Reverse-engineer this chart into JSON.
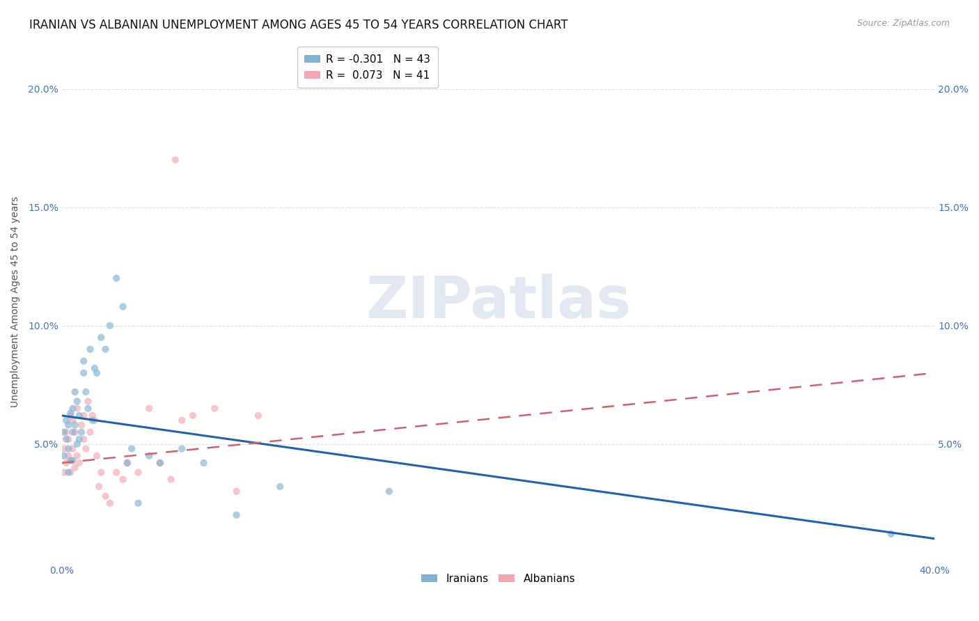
{
  "title": "IRANIAN VS ALBANIAN UNEMPLOYMENT AMONG AGES 45 TO 54 YEARS CORRELATION CHART",
  "source": "Source: ZipAtlas.com",
  "ylabel": "Unemployment Among Ages 45 to 54 years",
  "xlim": [
    0.0,
    0.4
  ],
  "ylim": [
    0.0,
    0.22
  ],
  "xticks": [
    0.0,
    0.05,
    0.1,
    0.15,
    0.2,
    0.25,
    0.3,
    0.35,
    0.4
  ],
  "yticks": [
    0.0,
    0.05,
    0.1,
    0.15,
    0.2
  ],
  "ytick_labels": [
    "",
    "5.0%",
    "10.0%",
    "15.0%",
    "20.0%"
  ],
  "xtick_labels": [
    "0.0%",
    "",
    "",
    "",
    "",
    "",
    "",
    "",
    "40.0%"
  ],
  "iranian_color": "#7fb3d3",
  "albanian_color": "#f4a7b0",
  "trend_iranian_color": "#2060b0",
  "trend_albanian_color": "#d06070",
  "r_iranian": -0.301,
  "n_iranian": 43,
  "r_albanian": 0.073,
  "n_albanian": 41,
  "scatter_size": 55,
  "scatter_alpha": 0.65,
  "background_color": "#ffffff",
  "grid_color": "#e0e0e0",
  "axis_color": "#4472C4",
  "title_fontsize": 12,
  "label_fontsize": 10,
  "tick_fontsize": 10,
  "legend_fontsize": 11,
  "iran_trend_x0": 0.0,
  "iran_trend_y0": 0.062,
  "iran_trend_x1": 0.4,
  "iran_trend_y1": 0.01,
  "alb_trend_x0": 0.0,
  "alb_trend_y0": 0.042,
  "alb_trend_x1": 0.4,
  "alb_trend_y1": 0.08,
  "iran_x": [
    0.001,
    0.001,
    0.002,
    0.002,
    0.003,
    0.003,
    0.003,
    0.004,
    0.004,
    0.005,
    0.005,
    0.005,
    0.006,
    0.006,
    0.007,
    0.007,
    0.008,
    0.008,
    0.009,
    0.01,
    0.01,
    0.011,
    0.012,
    0.013,
    0.014,
    0.015,
    0.016,
    0.018,
    0.02,
    0.022,
    0.025,
    0.028,
    0.03,
    0.032,
    0.035,
    0.04,
    0.045,
    0.055,
    0.065,
    0.08,
    0.1,
    0.15,
    0.38
  ],
  "iran_y": [
    0.055,
    0.045,
    0.052,
    0.06,
    0.048,
    0.058,
    0.038,
    0.063,
    0.043,
    0.065,
    0.055,
    0.043,
    0.058,
    0.072,
    0.05,
    0.068,
    0.062,
    0.052,
    0.055,
    0.08,
    0.085,
    0.072,
    0.065,
    0.09,
    0.06,
    0.082,
    0.08,
    0.095,
    0.09,
    0.1,
    0.12,
    0.108,
    0.042,
    0.048,
    0.025,
    0.045,
    0.042,
    0.048,
    0.042,
    0.02,
    0.032,
    0.03,
    0.012
  ],
  "alb_x": [
    0.001,
    0.001,
    0.002,
    0.002,
    0.003,
    0.003,
    0.004,
    0.004,
    0.005,
    0.005,
    0.006,
    0.006,
    0.007,
    0.007,
    0.008,
    0.009,
    0.01,
    0.01,
    0.011,
    0.012,
    0.013,
    0.014,
    0.015,
    0.016,
    0.017,
    0.018,
    0.02,
    0.022,
    0.025,
    0.028,
    0.03,
    0.035,
    0.04,
    0.045,
    0.05,
    0.055,
    0.06,
    0.07,
    0.08,
    0.09,
    0.052
  ],
  "alb_y": [
    0.048,
    0.038,
    0.055,
    0.042,
    0.052,
    0.045,
    0.062,
    0.038,
    0.06,
    0.048,
    0.04,
    0.055,
    0.065,
    0.045,
    0.042,
    0.058,
    0.062,
    0.052,
    0.048,
    0.068,
    0.055,
    0.062,
    0.06,
    0.045,
    0.032,
    0.038,
    0.028,
    0.025,
    0.038,
    0.035,
    0.042,
    0.038,
    0.065,
    0.042,
    0.035,
    0.06,
    0.062,
    0.065,
    0.03,
    0.062,
    0.17
  ]
}
